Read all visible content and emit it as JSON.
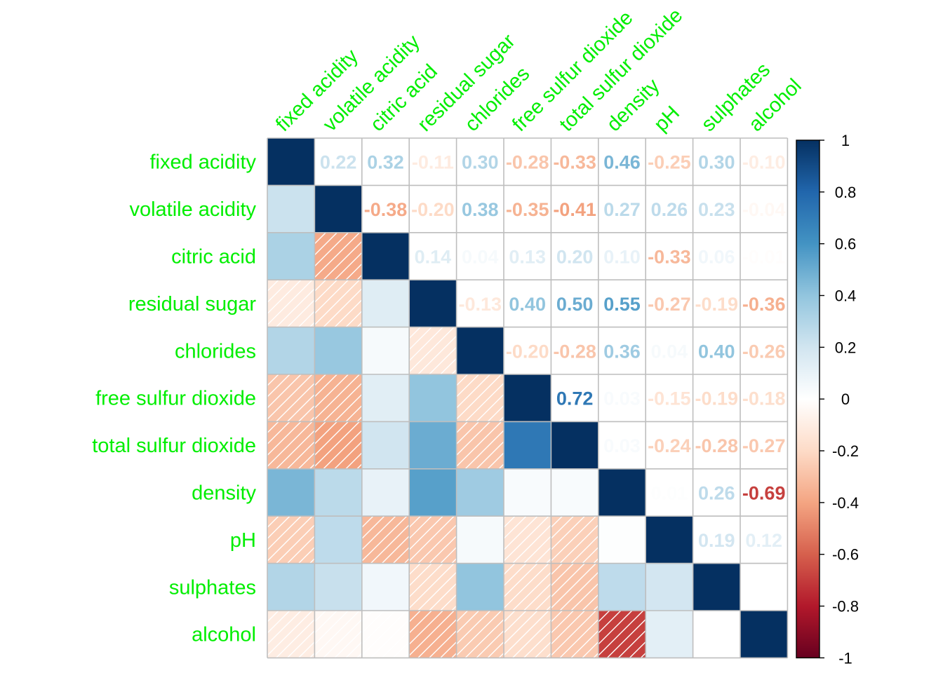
{
  "chart_data": {
    "type": "heatmap",
    "variables": [
      "fixed acidity",
      "volatile acidity",
      "citric acid",
      "residual sugar",
      "chlorides",
      "free sulfur dioxide",
      "total sulfur dioxide",
      "density",
      "pH",
      "sulphates",
      "alcohol"
    ],
    "values": [
      [
        1.0,
        0.22,
        0.32,
        -0.11,
        0.3,
        -0.28,
        -0.33,
        0.46,
        -0.25,
        0.3,
        -0.1
      ],
      [
        0.22,
        1.0,
        -0.38,
        -0.2,
        0.38,
        -0.35,
        -0.41,
        0.27,
        0.26,
        0.23,
        -0.04
      ],
      [
        0.32,
        -0.38,
        1.0,
        0.14,
        0.04,
        0.13,
        0.2,
        0.1,
        -0.33,
        0.06,
        -0.01
      ],
      [
        -0.11,
        -0.2,
        0.14,
        1.0,
        -0.13,
        0.4,
        0.5,
        0.55,
        -0.27,
        -0.19,
        -0.36
      ],
      [
        0.3,
        0.38,
        0.04,
        -0.13,
        1.0,
        -0.2,
        -0.28,
        0.36,
        0.04,
        0.4,
        -0.26
      ],
      [
        -0.28,
        -0.35,
        0.13,
        0.4,
        -0.2,
        1.0,
        0.72,
        0.03,
        -0.15,
        -0.19,
        -0.18
      ],
      [
        -0.33,
        -0.41,
        0.2,
        0.5,
        -0.28,
        0.72,
        1.0,
        0.03,
        -0.24,
        -0.28,
        -0.27
      ],
      [
        0.46,
        0.27,
        0.1,
        0.55,
        0.36,
        0.03,
        0.03,
        1.0,
        0.01,
        0.26,
        -0.69
      ],
      [
        -0.25,
        0.26,
        -0.33,
        -0.27,
        0.04,
        -0.15,
        -0.24,
        0.01,
        1.0,
        0.19,
        0.12
      ],
      [
        0.3,
        0.23,
        0.06,
        -0.19,
        0.4,
        -0.19,
        -0.28,
        0.26,
        0.19,
        1.0,
        0.0
      ],
      [
        -0.1,
        -0.04,
        -0.01,
        -0.36,
        -0.26,
        -0.18,
        -0.27,
        -0.69,
        0.12,
        0.0,
        1.0
      ]
    ],
    "upper_triangle": "number",
    "lower_triangle": "shade",
    "diagonal": "shade",
    "negative_hatching": true,
    "value_range": [
      -1,
      1
    ],
    "colorbar_ticks": [
      "1",
      "0.8",
      "0.6",
      "0.4",
      "0.2",
      "0",
      "-0.2",
      "-0.4",
      "-0.6",
      "-0.8",
      "-1"
    ],
    "colorbar_tick_values": [
      1,
      0.8,
      0.6,
      0.4,
      0.2,
      0,
      -0.2,
      -0.4,
      -0.6,
      -0.8,
      -1
    ],
    "label_color": "#00ee00",
    "grid_color": "#bebebe",
    "colormap": [
      "#67001F",
      "#B2182B",
      "#D6604D",
      "#F4A582",
      "#FDDBC7",
      "#FFFFFF",
      "#D1E5F0",
      "#92C5DE",
      "#4393C3",
      "#2166AC",
      "#053061"
    ],
    "legend_position": "right"
  }
}
